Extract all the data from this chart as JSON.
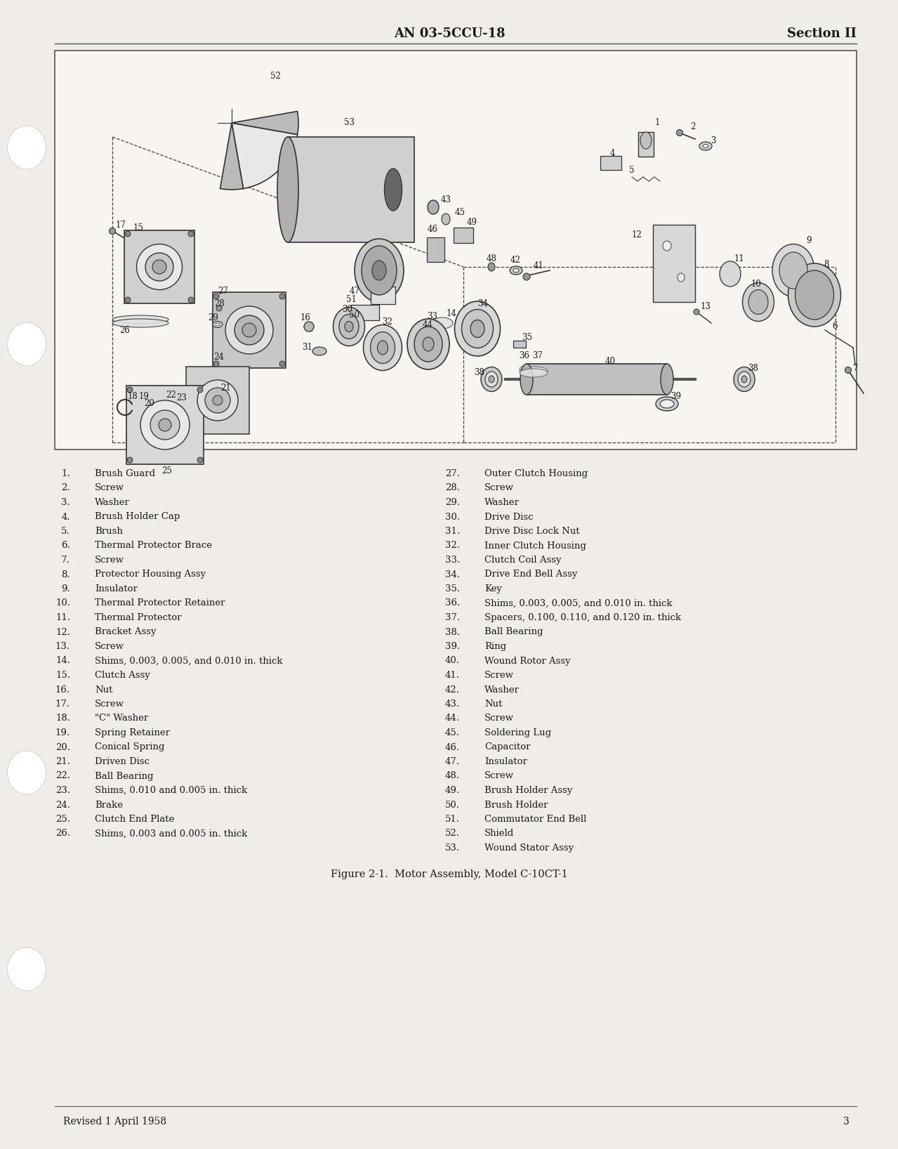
{
  "page_bg": "#f0ede8",
  "header_center_text": "AN 03-5CCU-18",
  "header_right_text": "Section II",
  "footer_left_text": "Revised 1 April 1958",
  "footer_right_text": "3",
  "figure_caption": "Figure 2-1.  Motor Assembly, Model C-10CT-1",
  "parts_left": [
    [
      "1.",
      "Brush Guard"
    ],
    [
      "2.",
      "Screw"
    ],
    [
      "3.",
      "Washer"
    ],
    [
      "4.",
      "Brush Holder Cap"
    ],
    [
      "5.",
      "Brush"
    ],
    [
      "6.",
      "Thermal Protector Brace"
    ],
    [
      "7.",
      "Screw"
    ],
    [
      "8.",
      "Protector Housing Assy"
    ],
    [
      "9.",
      "Insulator"
    ],
    [
      "10.",
      "Thermal Protector Retainer"
    ],
    [
      "11.",
      "Thermal Protector"
    ],
    [
      "12.",
      "Bracket Assy"
    ],
    [
      "13.",
      "Screw"
    ],
    [
      "14.",
      "Shims, 0.003, 0.005, and 0.010 in. thick"
    ],
    [
      "15.",
      "Clutch Assy"
    ],
    [
      "16.",
      "Nut"
    ],
    [
      "17.",
      "Screw"
    ],
    [
      "18.",
      "\"C\" Washer"
    ],
    [
      "19.",
      "Spring Retainer"
    ],
    [
      "20.",
      "Conical Spring"
    ],
    [
      "21.",
      "Driven Disc"
    ],
    [
      "22.",
      "Ball Bearing"
    ],
    [
      "23.",
      "Shims, 0.010 and 0.005 in. thick"
    ],
    [
      "24.",
      "Brake"
    ],
    [
      "25.",
      "Clutch End Plate"
    ],
    [
      "26.",
      "Shims, 0.003 and 0.005 in. thick"
    ]
  ],
  "parts_right": [
    [
      "27.",
      "Outer Clutch Housing"
    ],
    [
      "28.",
      "Screw"
    ],
    [
      "29.",
      "Washer"
    ],
    [
      "30.",
      "Drive Disc"
    ],
    [
      "31.",
      "Drive Disc Lock Nut"
    ],
    [
      "32.",
      "Inner Clutch Housing"
    ],
    [
      "33.",
      "Clutch Coil Assy"
    ],
    [
      "34.",
      "Drive End Bell Assy"
    ],
    [
      "35.",
      "Key"
    ],
    [
      "36.",
      "Shims, 0.003, 0.005, and 0.010 in. thick"
    ],
    [
      "37.",
      "Spacers, 0.100, 0.110, and 0.120 in. thick"
    ],
    [
      "38.",
      "Ball Bearing"
    ],
    [
      "39.",
      "Ring"
    ],
    [
      "40.",
      "Wound Rotor Assy"
    ],
    [
      "41.",
      "Screw"
    ],
    [
      "42.",
      "Washer"
    ],
    [
      "43.",
      "Nut"
    ],
    [
      "44.",
      "Screw"
    ],
    [
      "45.",
      "Soldering Lug"
    ],
    [
      "46.",
      "Capacitor"
    ],
    [
      "47.",
      "Insulator"
    ],
    [
      "48.",
      "Screw"
    ],
    [
      "49.",
      "Brush Holder Assy"
    ],
    [
      "50.",
      "Brush Holder"
    ],
    [
      "51.",
      "Commutator End Bell"
    ],
    [
      "52.",
      "Shield"
    ],
    [
      "53.",
      "Wound Stator Assy"
    ]
  ],
  "text_color": "#1a1a1a",
  "font_family": "DejaVu Serif"
}
